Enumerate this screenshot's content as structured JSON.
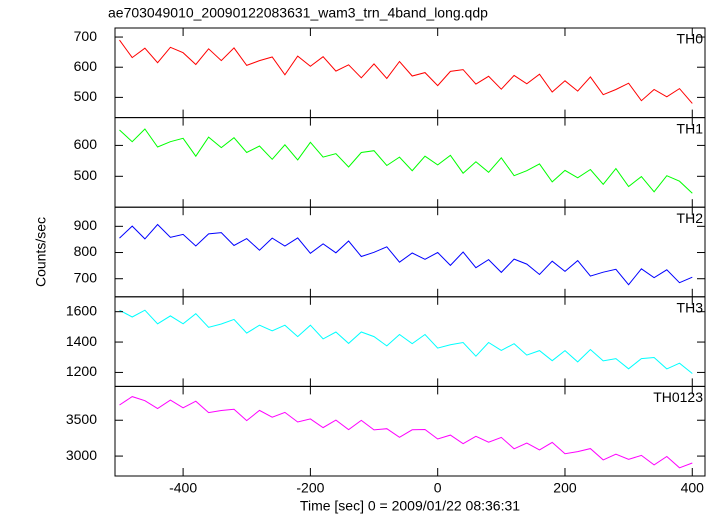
{
  "figure": {
    "title": "ae703049010_20090122083631_wam3_trn_4band_long.qdp",
    "xlabel": "Time [sec] 0 = 2009/01/22 08:36:31",
    "ylabel": "Counts/sec",
    "xlim": [
      -507,
      420
    ],
    "xticks": [
      -400,
      -200,
      0,
      200,
      400
    ],
    "x": [
      -500,
      -480,
      -460,
      -440,
      -420,
      -400,
      -380,
      -360,
      -340,
      -320,
      -300,
      -280,
      -260,
      -240,
      -220,
      -200,
      -180,
      -160,
      -140,
      -120,
      -100,
      -80,
      -60,
      -40,
      -20,
      0,
      20,
      40,
      60,
      80,
      100,
      120,
      140,
      160,
      180,
      200,
      220,
      240,
      260,
      280,
      300,
      320,
      340,
      360,
      380,
      400
    ]
  },
  "chart_data": [
    {
      "type": "line",
      "ylim": [
        433,
        730
      ],
      "yticks": [
        500,
        600,
        700
      ],
      "series": [
        {
          "name": "TH0",
          "color": "#ff0000",
          "values": [
            690,
            632,
            663,
            615,
            666,
            648,
            609,
            661,
            622,
            664,
            606,
            622,
            634,
            575,
            637,
            603,
            635,
            587,
            608,
            565,
            611,
            563,
            619,
            571,
            582,
            539,
            586,
            592,
            544,
            570,
            527,
            573,
            545,
            577,
            518,
            555,
            521,
            568,
            509,
            526,
            547,
            489,
            526,
            502,
            529,
            480
          ]
        }
      ]
    },
    {
      "type": "line",
      "ylim": [
        400,
        690
      ],
      "yticks": [
        500,
        600
      ],
      "series": [
        {
          "name": "TH1",
          "color": "#00ff00",
          "values": [
            650,
            612,
            653,
            595,
            612,
            623,
            565,
            627,
            593,
            625,
            577,
            598,
            555,
            602,
            553,
            610,
            562,
            573,
            530,
            577,
            583,
            535,
            562,
            518,
            565,
            537,
            568,
            510,
            547,
            513,
            560,
            502,
            518,
            540,
            482,
            519,
            495,
            522,
            474,
            525,
            467,
            499,
            450,
            502,
            484,
            445
          ]
        }
      ]
    },
    {
      "type": "line",
      "ylim": [
        631,
        973
      ],
      "yticks": [
        700,
        800,
        900
      ],
      "series": [
        {
          "name": "TH2",
          "color": "#0000ff",
          "values": [
            855,
            901,
            852,
            907,
            858,
            869,
            825,
            871,
            876,
            827,
            853,
            809,
            855,
            825,
            856,
            797,
            833,
            799,
            844,
            785,
            801,
            822,
            763,
            798,
            774,
            800,
            751,
            802,
            742,
            773,
            724,
            775,
            756,
            716,
            767,
            728,
            769,
            710,
            725,
            736,
            677,
            738,
            704,
            734,
            685,
            706
          ]
        }
      ]
    },
    {
      "type": "line",
      "ylim": [
        1108,
        1698
      ],
      "yticks": [
        1200,
        1400,
        1600
      ],
      "series": [
        {
          "name": "TH3",
          "color": "#00ffff",
          "values": [
            1610,
            1565,
            1610,
            1520,
            1572,
            1520,
            1587,
            1497,
            1519,
            1549,
            1459,
            1511,
            1474,
            1511,
            1436,
            1511,
            1421,
            1466,
            1391,
            1466,
            1436,
            1375,
            1450,
            1390,
            1450,
            1360,
            1382,
            1397,
            1307,
            1397,
            1345,
            1389,
            1314,
            1344,
            1277,
            1344,
            1269,
            1351,
            1276,
            1291,
            1224,
            1291,
            1298,
            1223,
            1261,
            1193
          ]
        }
      ]
    },
    {
      "type": "line",
      "ylim": [
        2722,
        3972
      ],
      "yticks": [
        3000,
        3500
      ],
      "series": [
        {
          "name": "TH0123",
          "color": "#ff00ff",
          "values": [
            3713,
            3830,
            3772,
            3664,
            3781,
            3673,
            3765,
            3607,
            3636,
            3653,
            3495,
            3637,
            3542,
            3609,
            3476,
            3518,
            3397,
            3502,
            3369,
            3498,
            3365,
            3382,
            3262,
            3366,
            3371,
            3238,
            3292,
            3172,
            3276,
            3193,
            3260,
            3102,
            3182,
            3086,
            3191,
            3033,
            3062,
            3104,
            2946,
            3026,
            2955,
            3010,
            2877,
            2994,
            2836,
            2903
          ]
        }
      ]
    }
  ]
}
